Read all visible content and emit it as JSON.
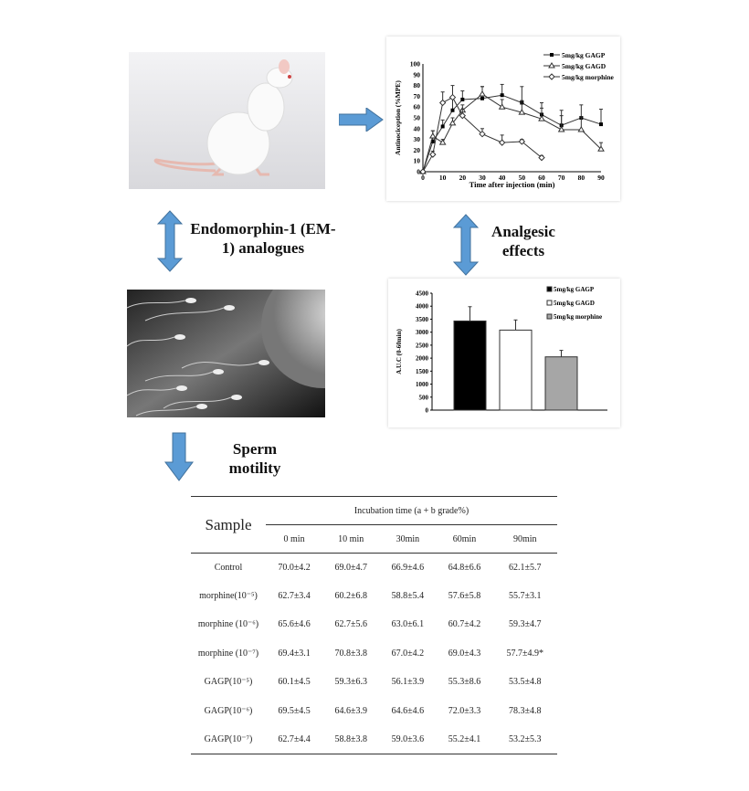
{
  "labels": {
    "em1": "Endomorphin-1 (EM-1) analogues",
    "analgesic": "Analgesic effects",
    "sperm": "Sperm motility"
  },
  "colors": {
    "arrow": "#5b9bd5",
    "bar_gagp": "#000000",
    "bar_gagd": "#ffffff",
    "bar_morphine": "#a6a6a6"
  },
  "images": {
    "rat": "white-rat-photo",
    "sperm": "sperm-egg-micrograph"
  },
  "chart_data": [
    {
      "type": "line",
      "xlabel": "Time after injection (min)",
      "ylabel": "Antinociception (%MPE)",
      "xlim": [
        0,
        90
      ],
      "ylim": [
        0,
        100
      ],
      "xticks": [
        0,
        10,
        20,
        30,
        40,
        50,
        60,
        70,
        80,
        90
      ],
      "yticks": [
        0,
        10,
        20,
        30,
        40,
        50,
        60,
        70,
        80,
        90,
        100
      ],
      "legend": "top-right",
      "series": [
        {
          "name": "5mg/kg GAGP",
          "marker": "filled-square",
          "x": [
            0,
            5,
            10,
            15,
            20,
            30,
            40,
            50,
            60,
            70,
            80,
            90
          ],
          "y": [
            0,
            28,
            42,
            57,
            67,
            68,
            71,
            64,
            53,
            43,
            50,
            44
          ],
          "err": [
            0,
            10,
            6,
            12,
            8,
            11,
            10,
            15,
            11,
            14,
            12,
            14
          ]
        },
        {
          "name": "5mg/kg GAGD",
          "marker": "open-triangle",
          "x": [
            0,
            5,
            10,
            15,
            20,
            30,
            40,
            50,
            60,
            70,
            80,
            90
          ],
          "y": [
            0,
            33,
            27,
            45,
            57,
            72,
            60,
            55,
            49,
            39,
            39,
            21
          ],
          "err": [
            0,
            5,
            3,
            5,
            5,
            7,
            7,
            11,
            10,
            13,
            12,
            6
          ]
        },
        {
          "name": "5mg/kg morphine",
          "marker": "open-diamond",
          "x": [
            0,
            5,
            10,
            15,
            20,
            30,
            40,
            50,
            60
          ],
          "y": [
            0,
            16,
            64,
            69,
            52,
            35,
            27,
            28,
            13
          ],
          "err": [
            0,
            3,
            10,
            11,
            6,
            5,
            7,
            2,
            2
          ]
        }
      ]
    },
    {
      "type": "bar",
      "ylabel": "A.U.C (0-60min)",
      "ylim": [
        0,
        4500
      ],
      "yticks": [
        0,
        500,
        1000,
        1500,
        2000,
        2500,
        3000,
        3500,
        4000,
        4500
      ],
      "legend": "top-right",
      "series": [
        {
          "name": "5mg/kg GAGP",
          "value": 3430,
          "err": 550
        },
        {
          "name": "5mg/kg GAGD",
          "value": 3080,
          "err": 390
        },
        {
          "name": "5mg/kg morphine",
          "value": 2050,
          "err": 250
        }
      ]
    }
  ],
  "table": {
    "sample_header": "Sample",
    "group_header": "Incubation time (a + b grade%)",
    "columns": [
      "0 min",
      "10 min",
      "30min",
      "60min",
      "90min"
    ],
    "rows": [
      {
        "sample": "Control",
        "values": [
          "70.0±4.2",
          "69.0±4.7",
          "66.9±4.6",
          "64.8±6.6",
          "62.1±5.7"
        ]
      },
      {
        "sample": "morphine(10⁻⁵)",
        "values": [
          "62.7±3.4",
          "60.2±6.8",
          "58.8±5.4",
          "57.6±5.8",
          "55.7±3.1"
        ]
      },
      {
        "sample": "morphine (10⁻⁶)",
        "values": [
          "65.6±4.6",
          "62.7±5.6",
          "63.0±6.1",
          "60.7±4.2",
          "59.3±4.7"
        ]
      },
      {
        "sample": "morphine (10⁻⁷)",
        "values": [
          "69.4±3.1",
          "70.8±3.8",
          "67.0±4.2",
          "69.0±4.3",
          "57.7±4.9*"
        ]
      },
      {
        "sample": "GAGP(10⁻⁵)",
        "values": [
          "60.1±4.5",
          "59.3±6.3",
          "56.1±3.9",
          "55.3±8.6",
          "53.5±4.8"
        ]
      },
      {
        "sample": "GAGP(10⁻⁶)",
        "values": [
          "69.5±4.5",
          "64.6±3.9",
          "64.6±4.6",
          "72.0±3.3",
          "78.3±4.8"
        ]
      },
      {
        "sample": "GAGP(10⁻⁷)",
        "values": [
          "62.7±4.4",
          "58.8±3.8",
          "59.0±3.6",
          "55.2±4.1",
          "53.2±5.3"
        ]
      }
    ]
  }
}
